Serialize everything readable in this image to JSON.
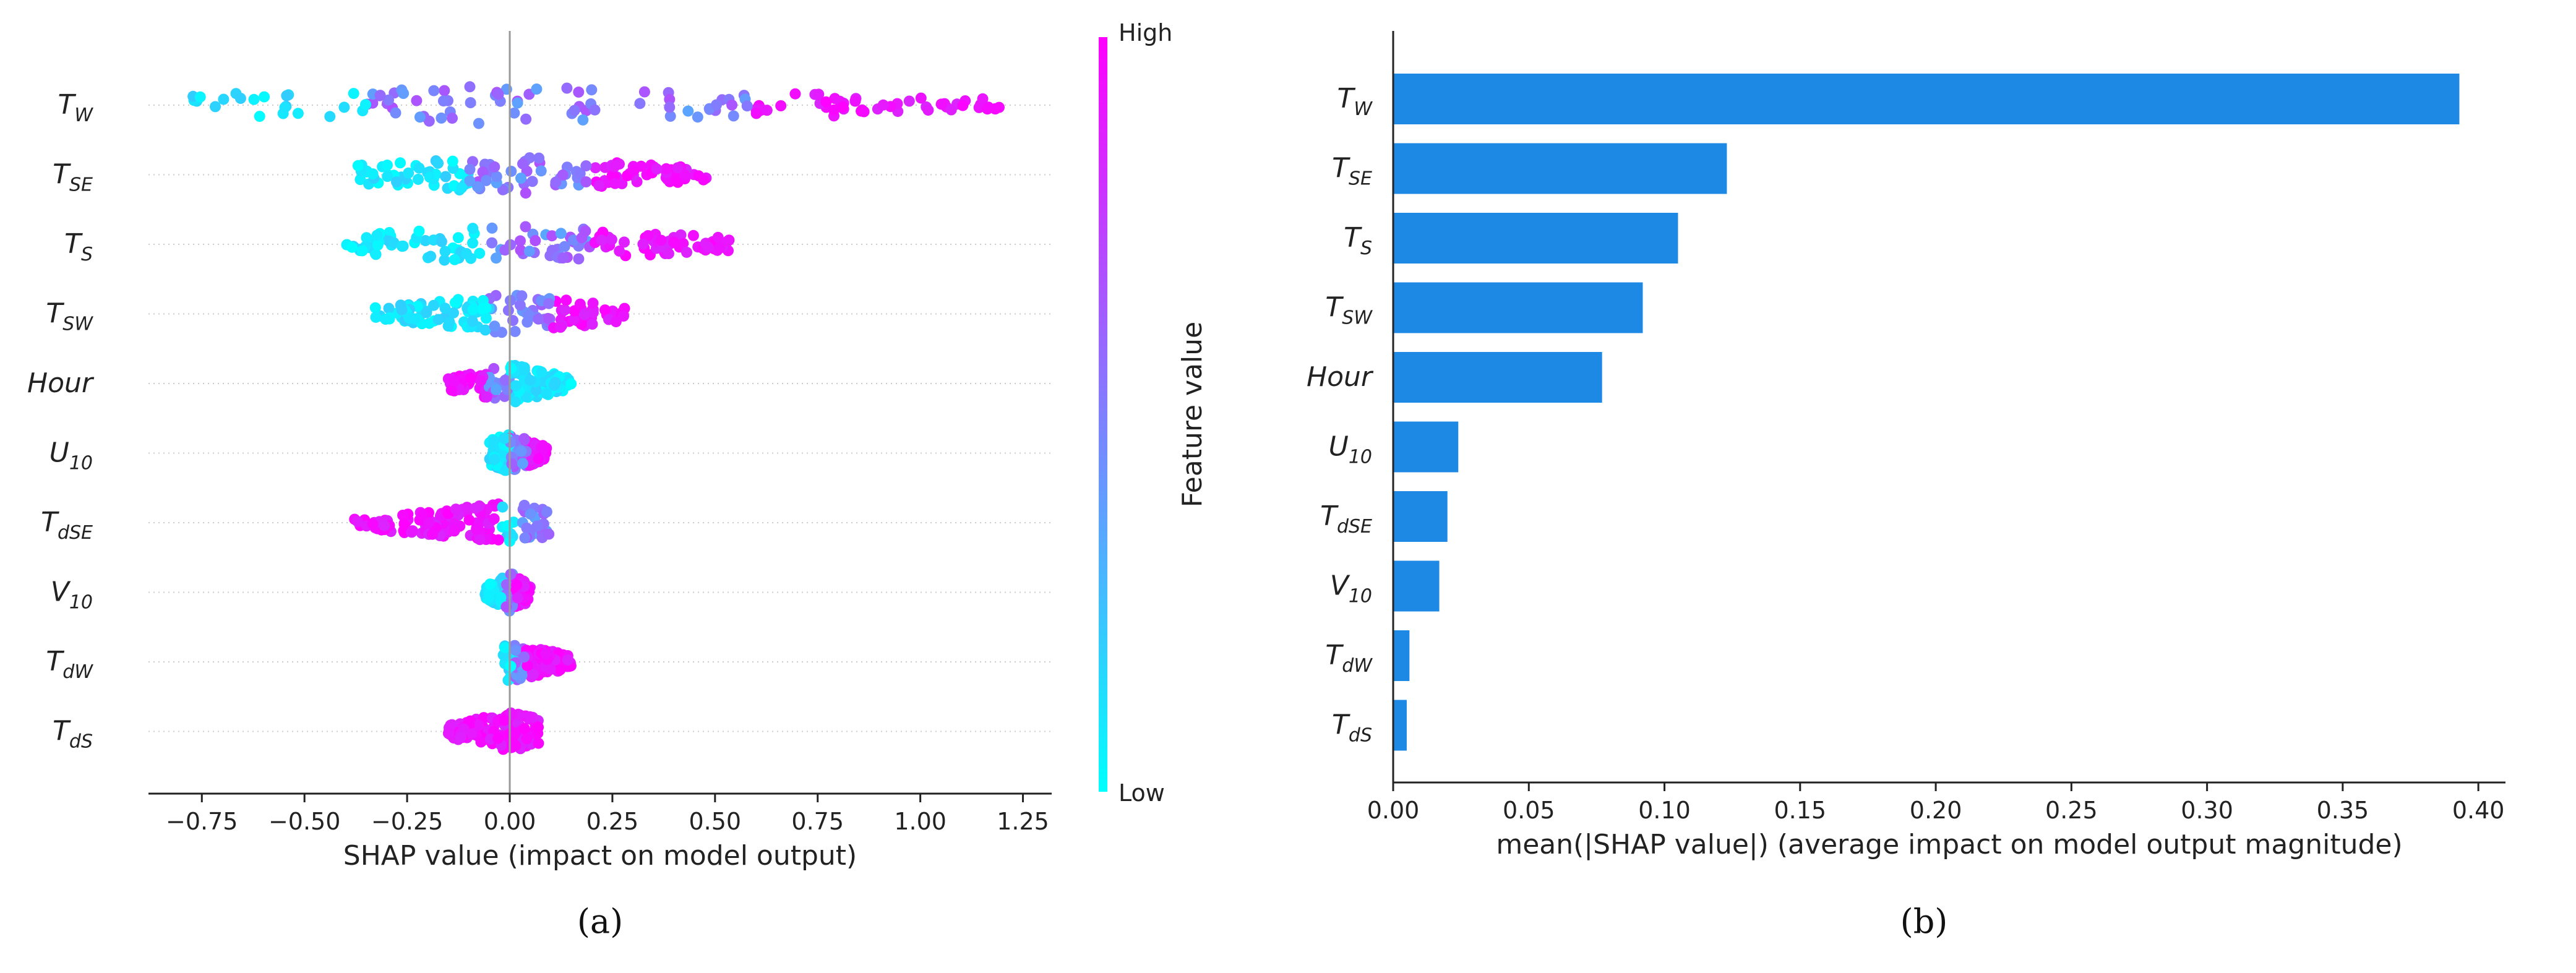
{
  "chart_data": [
    {
      "type": "scatter",
      "subtype": "shap-beeswarm",
      "panel_label": "(a)",
      "xlabel": "SHAP value (impact on model output)",
      "ylabel": "",
      "xlim": [
        -0.88,
        1.32
      ],
      "xticks": [
        -0.75,
        -0.5,
        -0.25,
        0.0,
        0.25,
        0.5,
        0.75,
        1.0,
        1.25
      ],
      "xtick_labels": [
        "−0.75",
        "−0.50",
        "−0.25",
        "0.00",
        "0.25",
        "0.50",
        "0.75",
        "1.00",
        "1.25"
      ],
      "features": [
        {
          "base": "T",
          "sub": "W"
        },
        {
          "base": "T",
          "sub": "SE"
        },
        {
          "base": "T",
          "sub": "S"
        },
        {
          "base": "T",
          "sub": "SW"
        },
        {
          "base": "Hour",
          "sub": ""
        },
        {
          "base": "U",
          "sub": "10"
        },
        {
          "base": "T",
          "sub": "dSE"
        },
        {
          "base": "V",
          "sub": "10"
        },
        {
          "base": "T",
          "sub": "dW"
        },
        {
          "base": "T",
          "sub": "dS"
        }
      ],
      "distributions": [
        {
          "min": -0.78,
          "max": 1.2,
          "color_low": [
            -0.78,
            -0.35
          ],
          "color_mid": [
            -0.3,
            0.45
          ],
          "color_high": [
            0.6,
            1.2
          ]
        },
        {
          "min": -0.37,
          "max": 0.48,
          "color_low": [
            -0.37,
            -0.1
          ],
          "color_mid": [
            -0.1,
            0.2
          ],
          "color_high": [
            0.2,
            0.48
          ]
        },
        {
          "min": -0.4,
          "max": 0.56,
          "color_low": [
            -0.4,
            -0.05
          ],
          "color_mid": [
            -0.05,
            0.2
          ],
          "color_high": [
            0.2,
            0.56
          ]
        },
        {
          "min": -0.33,
          "max": 0.28,
          "color_low": [
            -0.33,
            -0.05
          ],
          "color_mid": [
            -0.05,
            0.1
          ],
          "color_high": [
            0.1,
            0.28
          ]
        },
        {
          "min": -0.15,
          "max": 0.15,
          "color_low": [
            0.0,
            0.15
          ],
          "color_mid": [
            -0.05,
            0.05
          ],
          "color_high": [
            -0.15,
            -0.05
          ]
        },
        {
          "min": -0.05,
          "max": 0.09,
          "color_low": [
            -0.05,
            0.0
          ],
          "color_mid": [
            0.0,
            0.04
          ],
          "color_high": [
            0.04,
            0.09
          ]
        },
        {
          "min": -0.38,
          "max": 0.1,
          "color_low": [
            -0.02,
            0.03
          ],
          "color_mid": [
            -0.02,
            0.05
          ],
          "color_high": [
            -0.38,
            -0.02
          ]
        },
        {
          "min": -0.06,
          "max": 0.05,
          "color_low": [
            -0.06,
            -0.01
          ],
          "color_mid": [
            -0.01,
            0.02
          ],
          "color_high": [
            0.01,
            0.05
          ]
        },
        {
          "min": -0.02,
          "max": 0.15,
          "color_low": [
            -0.02,
            0.01
          ],
          "color_mid": [
            0.0,
            0.04
          ],
          "color_high": [
            0.04,
            0.15
          ]
        },
        {
          "min": -0.15,
          "max": 0.07,
          "color_low": [
            -0.01,
            0.01
          ],
          "color_mid": [
            -0.01,
            0.02
          ],
          "color_high": [
            -0.15,
            0.07
          ]
        }
      ],
      "colorbar": {
        "label": "Feature value",
        "high_label": "High",
        "low_label": "Low",
        "color_low": "#00ffff",
        "color_high": "#ff00ff"
      }
    },
    {
      "type": "bar",
      "orientation": "horizontal",
      "panel_label": "(b)",
      "xlabel": "mean(|SHAP value|) (average impact on model output magnitude)",
      "ylabel": "",
      "xlim": [
        0.0,
        0.41
      ],
      "xticks": [
        0.0,
        0.05,
        0.1,
        0.15,
        0.2,
        0.25,
        0.3,
        0.35,
        0.4
      ],
      "xtick_labels": [
        "0.00",
        "0.05",
        "0.10",
        "0.15",
        "0.20",
        "0.25",
        "0.30",
        "0.35",
        "0.40"
      ],
      "categories": [
        {
          "base": "T",
          "sub": "W"
        },
        {
          "base": "T",
          "sub": "SE"
        },
        {
          "base": "T",
          "sub": "S"
        },
        {
          "base": "T",
          "sub": "SW"
        },
        {
          "base": "Hour",
          "sub": ""
        },
        {
          "base": "U",
          "sub": "10"
        },
        {
          "base": "T",
          "sub": "dSE"
        },
        {
          "base": "V",
          "sub": "10"
        },
        {
          "base": "T",
          "sub": "dW"
        },
        {
          "base": "T",
          "sub": "dS"
        }
      ],
      "values": [
        0.393,
        0.123,
        0.105,
        0.092,
        0.077,
        0.024,
        0.02,
        0.017,
        0.006,
        0.005
      ],
      "bar_color": "#1e88e5"
    }
  ]
}
